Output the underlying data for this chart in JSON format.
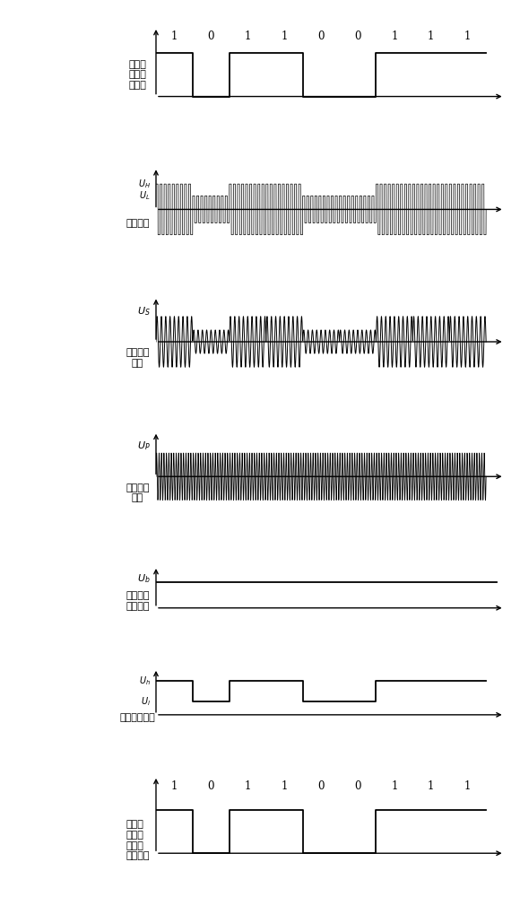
{
  "bits": [
    1,
    0,
    1,
    1,
    0,
    0,
    1,
    1,
    1
  ],
  "bit_labels": [
    "1",
    "0",
    "1",
    "1",
    "0",
    "0",
    "1",
    "1",
    "1"
  ],
  "panel_labels": [
    "第二识\n别码开\n关信号",
    "逆变电压",
    "第一谐振\n电压",
    "第二谐振\n电压",
    "整流波形\n（副边）",
    "锁相电压波形",
    "解调后\n的第二\n识别码\n开关信号"
  ],
  "bg_color": "#ffffff",
  "line_color": "#000000",
  "panel_heights": [
    1.6,
    1.4,
    1.5,
    1.5,
    0.9,
    1.0,
    1.9
  ]
}
